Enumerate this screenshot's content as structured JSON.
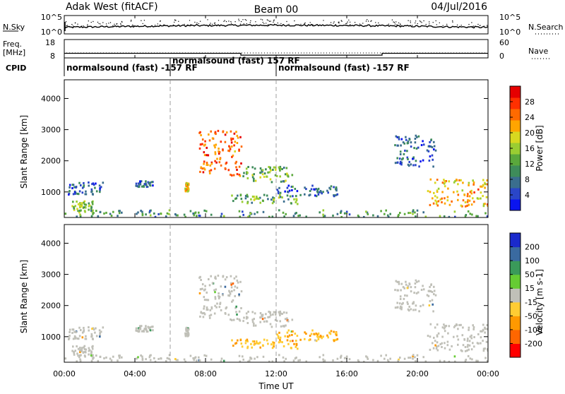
{
  "header": {
    "title": "Adak West (fitACF)",
    "beam": "Beam 00",
    "date": "04/Jul/2016"
  },
  "nsky": {
    "label": "N.Sky",
    "ticks_left": [
      "10^5",
      "10^0"
    ],
    "ticks_right": [
      "10^5",
      "10^0"
    ],
    "right_label": "N.Search"
  },
  "freq": {
    "label_line1": "Freq.",
    "label_line2": "[MHz]",
    "left_ticks": [
      "18",
      "8"
    ],
    "right_ticks": [
      "60",
      "0"
    ],
    "right_label": "Nave",
    "cpid_label": "CPID",
    "cpid_segments": [
      {
        "text": "normalsound (fast) -157 RF",
        "start_hour": 0
      },
      {
        "text": "normalsound (fast) 157 RF",
        "start_hour": 6
      },
      {
        "text": "normalsound (fast) -157 RF",
        "start_hour": 12
      }
    ]
  },
  "axes": {
    "ylabel": "Slant Range [km]",
    "xlabel": "Time UT",
    "xticks": [
      "00:00",
      "04:00",
      "08:00",
      "12:00",
      "16:00",
      "20:00",
      "00:00"
    ],
    "yticks": [
      "1000",
      "2000",
      "3000",
      "4000"
    ]
  },
  "power_colorbar": {
    "label": "Power [dB]",
    "ticks": [
      "4",
      "8",
      "12",
      "16",
      "20",
      "24",
      "28"
    ],
    "colors": [
      "#0a14f0",
      "#2a46c8",
      "#3a6e8e",
      "#3e8c5a",
      "#5aa83c",
      "#9acd32",
      "#d8d820",
      "#ffa500",
      "#ff6a00",
      "#ff3000",
      "#e60000"
    ]
  },
  "velocity_colorbar": {
    "label": "Velocity [m s-1]",
    "ticks": [
      "200",
      "100",
      "50",
      "15",
      "-15",
      "-50",
      "-100",
      "-200"
    ],
    "colors": [
      "#1a2acc",
      "#3a6aa0",
      "#3a9a5a",
      "#66cc33",
      "#c0c0b8",
      "#ffcc33",
      "#ff9900",
      "#ff6600",
      "#ff0000"
    ]
  },
  "chart_data": {
    "type": "heatmap",
    "title": "Adak West (fitACF)",
    "xlabel": "Time UT",
    "ylabel": "Slant Range [km]",
    "xlim": [
      0,
      24
    ],
    "ylim": [
      180,
      4600
    ],
    "frequency_mhz": [
      {
        "from_hour": 0,
        "to_hour": 10,
        "value": 10.5
      },
      {
        "from_hour": 10,
        "to_hour": 18,
        "value": 9.5
      },
      {
        "from_hour": 18,
        "to_hour": 24,
        "value": 10.5
      }
    ],
    "vertical_markers_hour": [
      6,
      12
    ],
    "echo_regions": [
      {
        "t": [
          0.2,
          2.2
        ],
        "r": [
          900,
          1300
        ],
        "power_db": 6,
        "velocity": 0
      },
      {
        "t": [
          0.4,
          1.6
        ],
        "r": [
          320,
          700
        ],
        "power_db": 14,
        "velocity": 0
      },
      {
        "t": [
          4.0,
          5.0
        ],
        "r": [
          1150,
          1350
        ],
        "power_db": 6,
        "velocity": 0
      },
      {
        "t": [
          6.8,
          7.0
        ],
        "r": [
          1000,
          1300
        ],
        "power_db": 18,
        "velocity": 0
      },
      {
        "t": [
          7.6,
          10.0
        ],
        "r": [
          1500,
          3000
        ],
        "power_db": 24,
        "velocity": 0
      },
      {
        "t": [
          10.0,
          13.0
        ],
        "r": [
          1300,
          1800
        ],
        "power_db": 13,
        "velocity": 0
      },
      {
        "t": [
          9.3,
          13.2
        ],
        "r": [
          600,
          900
        ],
        "power_db": 12,
        "velocity": -45
      },
      {
        "t": [
          12.0,
          15.5
        ],
        "r": [
          850,
          1200
        ],
        "power_db": 6,
        "velocity": -45
      },
      {
        "t": [
          18.6,
          21.0
        ],
        "r": [
          1800,
          2800
        ],
        "power_db": 6,
        "velocity": 0
      },
      {
        "t": [
          20.5,
          24.0
        ],
        "r": [
          500,
          1400
        ],
        "power_db": 20,
        "velocity": 0
      },
      {
        "t": [
          0.0,
          24.0
        ],
        "r": [
          180,
          400
        ],
        "power_db": 10,
        "velocity": 0
      }
    ]
  }
}
